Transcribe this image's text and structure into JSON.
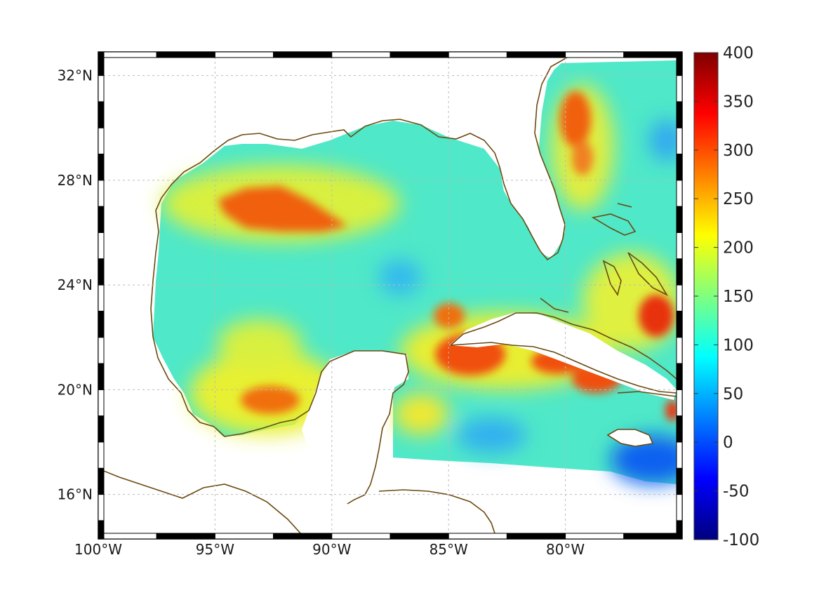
{
  "map": {
    "type": "heatmap",
    "region": "Gulf of Mexico and Caribbean",
    "lon_range": [
      -100,
      -75
    ],
    "lat_range": [
      14.3,
      32.9
    ],
    "grid": true,
    "x_ticks": [
      {
        "lon": -100,
        "label": "100°W"
      },
      {
        "lon": -95,
        "label": "95°W"
      },
      {
        "lon": -90,
        "label": "90°W"
      },
      {
        "lon": -85,
        "label": "85°W"
      },
      {
        "lon": -80,
        "label": "80°W"
      }
    ],
    "y_ticks": [
      {
        "lat": 32,
        "label": "32°N"
      },
      {
        "lat": 28,
        "label": "28°N"
      },
      {
        "lat": 24,
        "label": "24°N"
      },
      {
        "lat": 20,
        "label": "20°N"
      },
      {
        "lat": 16,
        "label": "16°N"
      }
    ],
    "colors": {
      "coastline": "#6b4a10",
      "land": "#ffffff",
      "grid": "#bbbbbb",
      "frame": "#000000"
    }
  },
  "colorbar": {
    "colormap": "jet",
    "range": [
      -100,
      400
    ],
    "ticks": [
      {
        "value": 400,
        "label": "400"
      },
      {
        "value": 350,
        "label": "350"
      },
      {
        "value": 300,
        "label": "300"
      },
      {
        "value": 250,
        "label": "250"
      },
      {
        "value": 200,
        "label": "200"
      },
      {
        "value": 150,
        "label": "150"
      },
      {
        "value": 100,
        "label": "100"
      },
      {
        "value": 50,
        "label": "50"
      },
      {
        "value": 0,
        "label": "0"
      },
      {
        "value": -50,
        "label": "-50"
      },
      {
        "value": -100,
        "label": "-100"
      }
    ]
  },
  "chart_data": {
    "type": "heatmap",
    "background_value": 130,
    "features": [
      {
        "name": "texas-shelf-high",
        "lon": -92.8,
        "lat": 27.4,
        "value": 290
      },
      {
        "name": "bay-of-campeche-high",
        "lon": -92.0,
        "lat": 19.7,
        "value": 270
      },
      {
        "name": "cuba-west-high",
        "lon": -84.2,
        "lat": 21.5,
        "value": 290
      },
      {
        "name": "cuba-south-high",
        "lon": -81.4,
        "lat": 21.2,
        "value": 280
      },
      {
        "name": "hispaniola-high",
        "lon": -79.4,
        "lat": 20.6,
        "value": 290
      },
      {
        "name": "georgia-coast-high",
        "lon": -79.8,
        "lat": 30.5,
        "value": 280
      },
      {
        "name": "bahamas-east-high",
        "lon": -75.8,
        "lat": 23.2,
        "value": 310
      },
      {
        "name": "central-gulf-low",
        "lon": -87.9,
        "lat": 24.6,
        "value": 70
      },
      {
        "name": "caribbean-south-low",
        "lon": -75.8,
        "lat": 17.1,
        "value": 20
      }
    ]
  }
}
